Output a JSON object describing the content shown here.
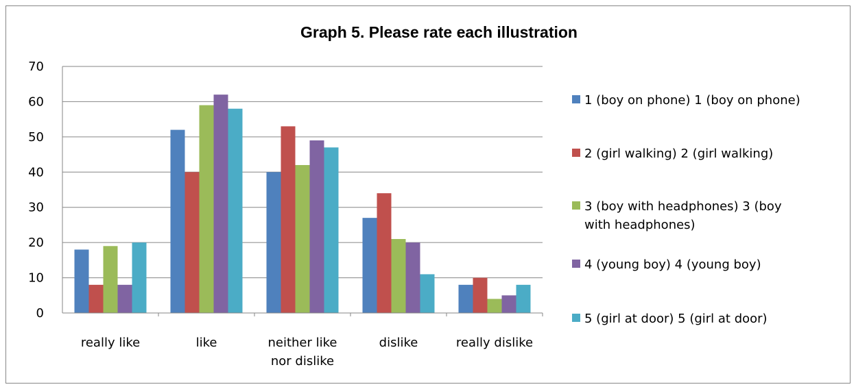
{
  "chart_data": {
    "type": "bar",
    "title": "Graph 5. Please rate each illustration",
    "categories": [
      [
        "really like"
      ],
      [
        "like"
      ],
      [
        "neither like",
        "nor dislike"
      ],
      [
        "dislike"
      ],
      [
        "really dislike"
      ]
    ],
    "series": [
      {
        "name": "1 (boy on phone) 1 (boy on phone)",
        "legend_lines": [
          "1 (boy on phone) 1 (boy on phone)"
        ],
        "color": "#4F81BD",
        "values": [
          18,
          52,
          40,
          27,
          8
        ]
      },
      {
        "name": "2 (girl walking) 2 (girl walking)",
        "legend_lines": [
          "2 (girl walking) 2 (girl walking)"
        ],
        "color": "#C0504D",
        "values": [
          8,
          40,
          53,
          34,
          10
        ]
      },
      {
        "name": "3 (boy with headphones) 3 (boy with headphones)",
        "legend_lines": [
          "3 (boy with headphones) 3 (boy",
          "with headphones)"
        ],
        "color": "#9BBB59",
        "values": [
          19,
          59,
          42,
          21,
          4
        ]
      },
      {
        "name": "4 (young boy) 4 (young boy)",
        "legend_lines": [
          "4 (young boy) 4 (young boy)"
        ],
        "color": "#8064A2",
        "values": [
          8,
          62,
          49,
          20,
          5
        ]
      },
      {
        "name": "5 (girl at door) 5 (girl at door)",
        "legend_lines": [
          "5 (girl at door) 5 (girl at door)"
        ],
        "color": "#4BACC6",
        "values": [
          20,
          58,
          47,
          11,
          8
        ]
      }
    ],
    "ylim": [
      0,
      70
    ],
    "yticks": [
      0,
      10,
      20,
      30,
      40,
      50,
      60,
      70
    ],
    "grid": true,
    "legend_position": "right"
  }
}
